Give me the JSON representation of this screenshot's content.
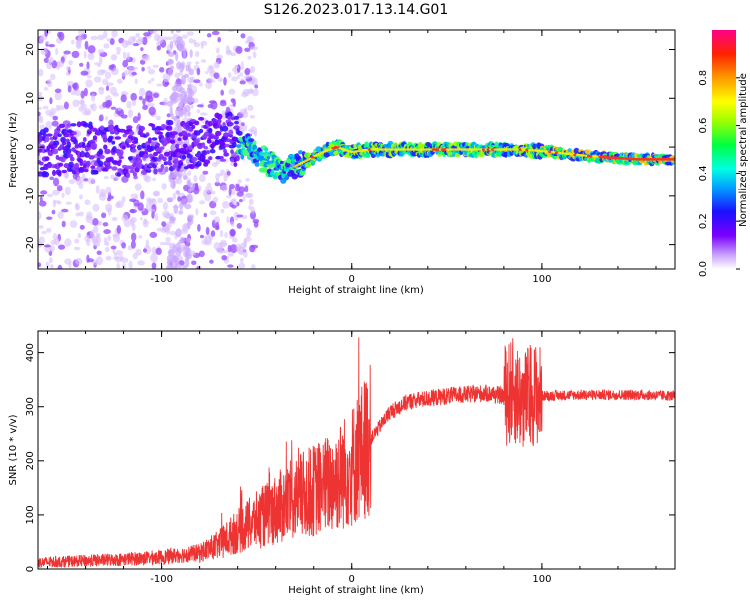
{
  "title": "S126.2023.017.13.14.G01",
  "chart_data": [
    {
      "type": "heatmap",
      "xlabel": "Height of straight line (km)",
      "ylabel": "Frequency (Hz)",
      "xlim": [
        -165,
        170
      ],
      "ylim": [
        -25,
        24
      ],
      "xticks": [
        -100,
        0,
        100
      ],
      "yticks": [
        -20,
        -10,
        0,
        10,
        20
      ],
      "colorbar": {
        "label": "Normalized spectral amplitude",
        "ticks": [
          0.0,
          0.2,
          0.4,
          0.6,
          0.8
        ],
        "range": [
          0,
          1
        ]
      },
      "ridge": {
        "x": [
          -165,
          -140,
          -120,
          -100,
          -80,
          -65,
          -55,
          -45,
          -35,
          -25,
          -15,
          -8,
          0,
          10,
          30,
          50,
          70,
          90,
          105,
          115,
          130,
          150,
          170
        ],
        "y": [
          -1,
          0,
          -1,
          0,
          1,
          2,
          0,
          -3,
          -5,
          -3,
          -1,
          0,
          -1,
          -0.5,
          -0.5,
          -0.5,
          -0.5,
          -0.5,
          -1,
          -1.5,
          -2,
          -2.5,
          -2.5
        ]
      }
    },
    {
      "type": "line",
      "xlabel": "Height of straight line (km)",
      "ylabel": "SNR (10 * v/v)",
      "xlim": [
        -165,
        170
      ],
      "ylim": [
        0,
        440
      ],
      "xticks": [
        -100,
        0,
        100
      ],
      "yticks": [
        0,
        100,
        200,
        300,
        400
      ],
      "color": "#ee3333",
      "envelope": {
        "x": [
          -165,
          -140,
          -120,
          -100,
          -80,
          -70,
          -60,
          -50,
          -40,
          -30,
          -20,
          -10,
          0,
          10,
          20,
          30,
          50,
          70,
          80,
          85,
          90,
          95,
          100,
          120,
          150,
          170
        ],
        "y": [
          12,
          15,
          18,
          22,
          30,
          45,
          70,
          90,
          110,
          130,
          145,
          160,
          190,
          240,
          290,
          310,
          320,
          325,
          320,
          330,
          310,
          325,
          320,
          322,
          322,
          320
        ]
      }
    }
  ]
}
